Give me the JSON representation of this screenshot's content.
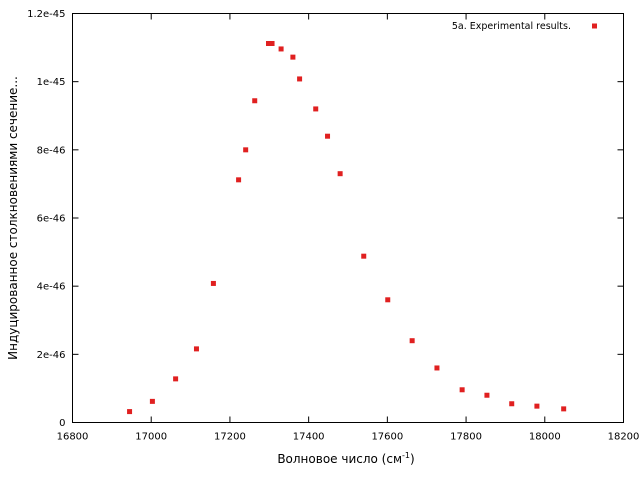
{
  "chart_data": {
    "type": "scatter",
    "xlabel": "Волновое число (см",
    "xlabel_superscript": "-1",
    "xlabel_suffix": ")",
    "ylabel": "Индуцированное столкновениями сечение...",
    "xlim": [
      16800,
      18200
    ],
    "ylim": [
      0,
      1.2e-45
    ],
    "x_ticks": [
      16800,
      17000,
      17200,
      17400,
      17600,
      17800,
      18000,
      18200
    ],
    "x_tick_labels": [
      "16800",
      "17000",
      "17200",
      "17400",
      "17600",
      "17800",
      "18000",
      "18200"
    ],
    "y_ticks": [
      0,
      2e-46,
      4e-46,
      6e-46,
      8e-46,
      1e-45,
      1.2e-45
    ],
    "y_tick_labels": [
      "0",
      "2e-46",
      "4e-46",
      "6e-46",
      "8e-46",
      "1e-45",
      "1.2e-45"
    ],
    "grid": false,
    "legend_position": "top-right",
    "series": [
      {
        "name": "5a. Experimental results.",
        "color": "#e02020",
        "marker": "square",
        "x": [
          16945,
          17003,
          17062,
          17115,
          17158,
          17222,
          17240,
          17263,
          17298,
          17307,
          17330,
          17360,
          17377,
          17418,
          17448,
          17480,
          17540,
          17601,
          17663,
          17726,
          17790,
          17853,
          17916,
          17980,
          18048
        ],
        "y": [
          3.2e-47,
          6.2e-47,
          1.28e-46,
          2.16e-46,
          4.08e-46,
          7.12e-46,
          8e-46,
          9.44e-46,
          1.112e-45,
          1.112e-45,
          1.096e-45,
          1.072e-45,
          1.008e-45,
          9.2e-46,
          8.4e-46,
          7.3e-46,
          4.88e-46,
          3.6e-46,
          2.4e-46,
          1.6e-46,
          9.6e-47,
          8e-47,
          5.5e-47,
          4.8e-47,
          4e-47
        ]
      }
    ]
  }
}
